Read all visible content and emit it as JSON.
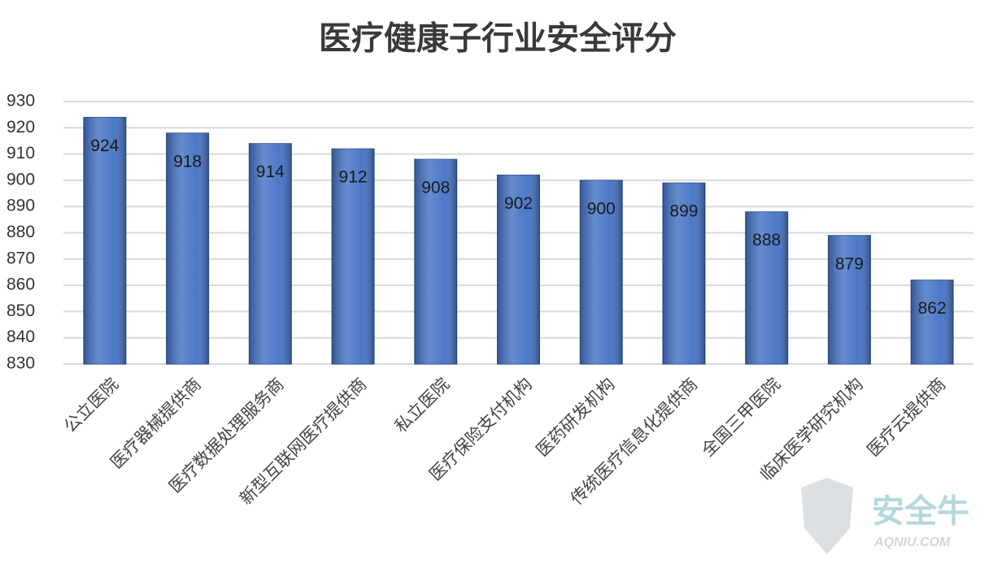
{
  "chart_data": {
    "type": "bar",
    "title": "医疗健康子行业安全评分",
    "categories": [
      "公立医院",
      "医疗器械提供商",
      "医疗数据处理服务商",
      "新型互联网医疗提供商",
      "私立医院",
      "医疗保险支付机构",
      "医药研发机构",
      "传统医疗信息化提供商",
      "全国三甲医院",
      "临床医学研究机构",
      "医疗云提供商"
    ],
    "values": [
      924,
      918,
      914,
      912,
      908,
      902,
      900,
      899,
      888,
      879,
      862
    ],
    "color": "#4472c4",
    "ylim": [
      830,
      930
    ],
    "yticks": [
      830,
      840,
      850,
      860,
      870,
      880,
      890,
      900,
      910,
      920,
      930
    ],
    "grid": true
  },
  "watermark": {
    "text": "安全牛",
    "subtext": "AQNIU.COM"
  }
}
